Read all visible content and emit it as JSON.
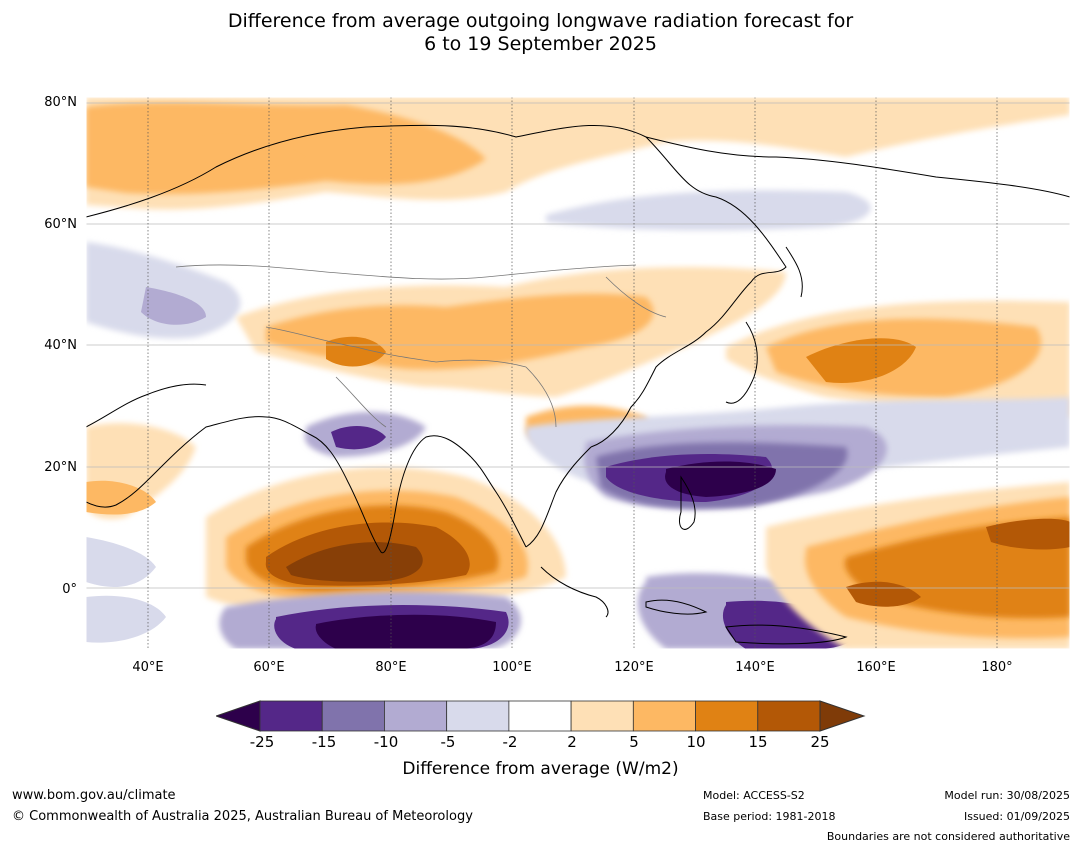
{
  "title": {
    "line1": "Difference from average outgoing longwave radiation forecast for",
    "line2": "6 to 19 September 2025"
  },
  "map": {
    "lon_range": [
      30,
      192
    ],
    "lat_range": [
      -10,
      81
    ],
    "lat_labels": [
      "80°N",
      "60°N",
      "40°N",
      "20°N",
      "0°"
    ],
    "lon_labels": [
      "40°E",
      "60°E",
      "80°E",
      "100°E",
      "120°E",
      "140°E",
      "160°E",
      "180°"
    ]
  },
  "colorbar": {
    "title": "Difference from average (W/m2)",
    "ticks": [
      "-25",
      "-15",
      "-10",
      "-5",
      "-2",
      "2",
      "5",
      "10",
      "15",
      "25"
    ],
    "colors": [
      "#2d004b",
      "#542788",
      "#8073ac",
      "#b2abd2",
      "#d8daeb",
      "#ffffff",
      "#fee0b6",
      "#fdb863",
      "#e08214",
      "#b35806",
      "#7f3b08"
    ]
  },
  "footer": {
    "url": "www.bom.gov.au/climate",
    "copyright": "© Commonwealth of Australia 2025, Australian Bureau of Meteorology",
    "model": "Model: ACCESS-S2",
    "base_period": "Base period: 1981-2018",
    "model_run": "Model run: 30/08/2025",
    "issued": "Issued: 01/09/2025",
    "disclaimer": "Boundaries are not considered authoritative"
  }
}
